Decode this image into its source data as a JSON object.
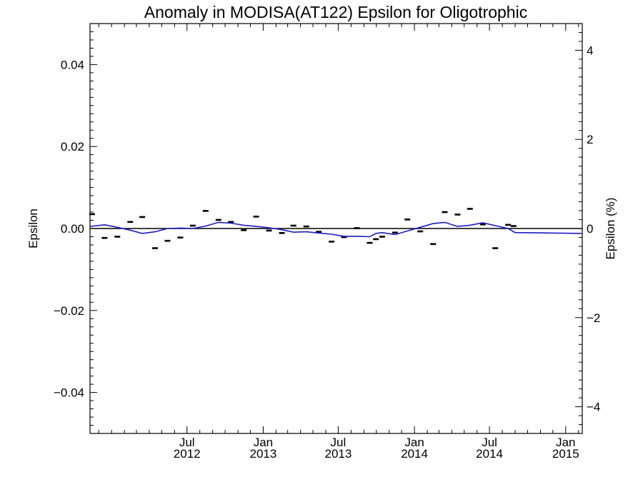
{
  "chart_data": {
    "type": "line",
    "title": "Anomaly in MODISA(AT122) Epsilon for Oligotrophic",
    "ylabel": "Epsilon",
    "ylabel_right": "Epsilon (%)",
    "ylim": [
      -0.05,
      0.05
    ],
    "ylim_right": [
      -4.6,
      4.6
    ],
    "y_ticks": [
      "0.04",
      "0.02",
      "0.00",
      "−0.02",
      "−0.04"
    ],
    "y_tick_values": [
      0.04,
      0.02,
      0.0,
      -0.02,
      -0.04
    ],
    "y_right_ticks": [
      "4",
      "2",
      "0",
      "−2",
      "−4"
    ],
    "y_right_tick_values": [
      4,
      2,
      0,
      -2,
      -4
    ],
    "xlim": [
      "2011-11-10",
      "2015-02-10"
    ],
    "x_ticks": [
      {
        "date": "2012-07-01",
        "month": "Jul",
        "year": "2012"
      },
      {
        "date": "2013-01-01",
        "month": "Jan",
        "year": "2013"
      },
      {
        "date": "2013-07-01",
        "month": "Jul",
        "year": "2013"
      },
      {
        "date": "2014-01-01",
        "month": "Jan",
        "year": "2014"
      },
      {
        "date": "2014-07-01",
        "month": "Jul",
        "year": "2014"
      },
      {
        "date": "2015-01-01",
        "month": "Jan",
        "year": "2015"
      }
    ],
    "zero_line": true,
    "grid": false,
    "series": [
      {
        "style": "markers",
        "color": "#000000",
        "points": [
          [
            "2011-11-15",
            0.0035
          ],
          [
            "2011-12-15",
            -0.0023
          ],
          [
            "2012-01-15",
            -0.002
          ],
          [
            "2012-02-15",
            0.0016
          ],
          [
            "2012-03-15",
            0.0028
          ],
          [
            "2012-04-15",
            -0.0048
          ],
          [
            "2012-05-15",
            -0.003
          ],
          [
            "2012-06-15",
            -0.0022
          ],
          [
            "2012-07-15",
            0.0007
          ],
          [
            "2012-08-15",
            0.0043
          ],
          [
            "2012-09-15",
            0.0021
          ],
          [
            "2012-10-15",
            0.0016
          ],
          [
            "2012-11-15",
            -0.0004
          ],
          [
            "2012-12-15",
            0.0029
          ],
          [
            "2013-01-15",
            -0.0005
          ],
          [
            "2013-02-15",
            -0.0011
          ],
          [
            "2013-03-15",
            0.0007
          ],
          [
            "2013-04-15",
            0.0005
          ],
          [
            "2013-05-15",
            -0.0008
          ],
          [
            "2013-06-15",
            -0.0032
          ],
          [
            "2013-07-15",
            -0.0021
          ],
          [
            "2013-08-15",
            0.0001
          ],
          [
            "2013-09-15",
            -0.0035
          ],
          [
            "2013-09-30",
            -0.0026
          ],
          [
            "2013-10-15",
            -0.002
          ],
          [
            "2013-11-15",
            -0.001
          ],
          [
            "2013-12-15",
            0.0022
          ],
          [
            "2014-01-15",
            -0.0007
          ],
          [
            "2014-02-15",
            -0.0038
          ],
          [
            "2014-03-15",
            0.004
          ],
          [
            "2014-04-15",
            0.0034
          ],
          [
            "2014-05-15",
            0.0048
          ],
          [
            "2014-06-15",
            0.001
          ],
          [
            "2014-07-15",
            -0.0048
          ],
          [
            "2014-08-15",
            0.0009
          ],
          [
            "2014-08-28",
            0.0006
          ]
        ]
      },
      {
        "style": "line",
        "color": "#1c1cc8",
        "points": [
          [
            "2011-11-10",
            0.0005
          ],
          [
            "2011-12-15",
            0.0009
          ],
          [
            "2012-01-15",
            0.0003
          ],
          [
            "2012-02-15",
            -0.0004
          ],
          [
            "2012-03-15",
            -0.0012
          ],
          [
            "2012-04-15",
            -0.0008
          ],
          [
            "2012-05-15",
            0.0
          ],
          [
            "2012-06-15",
            0.0001
          ],
          [
            "2012-07-15",
            0.0
          ],
          [
            "2012-08-15",
            0.0006
          ],
          [
            "2012-09-15",
            0.0015
          ],
          [
            "2012-10-15",
            0.0013
          ],
          [
            "2012-11-15",
            0.0008
          ],
          [
            "2012-12-15",
            0.0005
          ],
          [
            "2013-01-15",
            0.0002
          ],
          [
            "2013-02-15",
            -0.0003
          ],
          [
            "2013-03-15",
            -0.0009
          ],
          [
            "2013-04-15",
            -0.0008
          ],
          [
            "2013-05-15",
            -0.0011
          ],
          [
            "2013-06-15",
            -0.0014
          ],
          [
            "2013-07-15",
            -0.0019
          ],
          [
            "2013-08-15",
            -0.0019
          ],
          [
            "2013-09-15",
            -0.002
          ],
          [
            "2013-09-30",
            -0.0012
          ],
          [
            "2013-10-15",
            -0.001
          ],
          [
            "2013-11-15",
            -0.0015
          ],
          [
            "2013-12-15",
            -0.0006
          ],
          [
            "2014-01-15",
            0.0003
          ],
          [
            "2014-02-15",
            0.0012
          ],
          [
            "2014-03-15",
            0.0015
          ],
          [
            "2014-04-15",
            0.0005
          ],
          [
            "2014-05-15",
            0.0008
          ],
          [
            "2014-06-15",
            0.0014
          ],
          [
            "2014-07-15",
            0.0007
          ],
          [
            "2014-08-15",
            0.0
          ],
          [
            "2014-09-01",
            -0.001
          ],
          [
            "2015-02-10",
            -0.0012
          ]
        ]
      }
    ]
  }
}
